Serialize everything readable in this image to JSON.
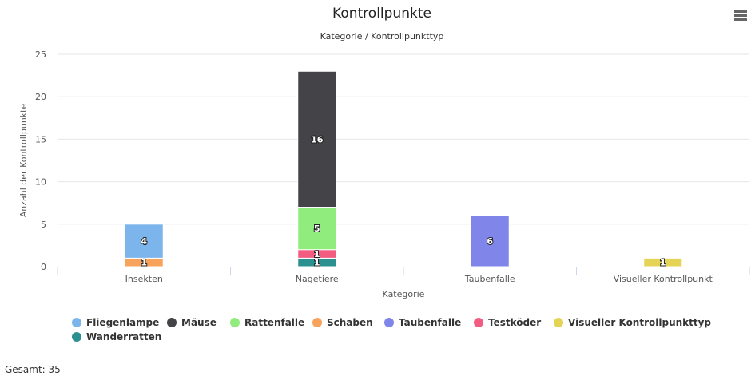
{
  "chart_data": {
    "type": "bar",
    "stacked": true,
    "title": "Kontrollpunkte",
    "subtitle": "Kategorie / Kontrollpunkttyp",
    "xlabel": "Kategorie",
    "ylabel": "Anzahl der Kontrollpunkte",
    "ylim": [
      0,
      25
    ],
    "yticks": [
      0,
      5,
      10,
      15,
      20,
      25
    ],
    "grid": true,
    "legend_position": "bottom-left",
    "categories": [
      "Insekten",
      "Nagetiere",
      "Taubenfalle",
      "Visueller Kontrollpunkt"
    ],
    "series": [
      {
        "name": "Fliegenlampe",
        "color": "#7cb5ec",
        "values": [
          4,
          0,
          0,
          0
        ]
      },
      {
        "name": "Mäuse",
        "color": "#434348",
        "values": [
          0,
          16,
          0,
          0
        ]
      },
      {
        "name": "Rattenfalle",
        "color": "#90ed7d",
        "values": [
          0,
          5,
          0,
          0
        ]
      },
      {
        "name": "Schaben",
        "color": "#f7a35c",
        "values": [
          1,
          0,
          0,
          0
        ]
      },
      {
        "name": "Taubenfalle",
        "color": "#8085e9",
        "values": [
          0,
          0,
          6,
          0
        ]
      },
      {
        "name": "Testköder",
        "color": "#f15c80",
        "values": [
          0,
          1,
          0,
          0
        ]
      },
      {
        "name": "Visueller Kontrollpunkttyp",
        "color": "#e4d354",
        "values": [
          0,
          0,
          0,
          1
        ]
      },
      {
        "name": "Wanderratten",
        "color": "#2b908f",
        "values": [
          0,
          1,
          0,
          0
        ]
      }
    ]
  },
  "menu": {
    "icon": "hamburger-menu-icon"
  },
  "footer": {
    "total_label": "Gesamt: 35"
  }
}
